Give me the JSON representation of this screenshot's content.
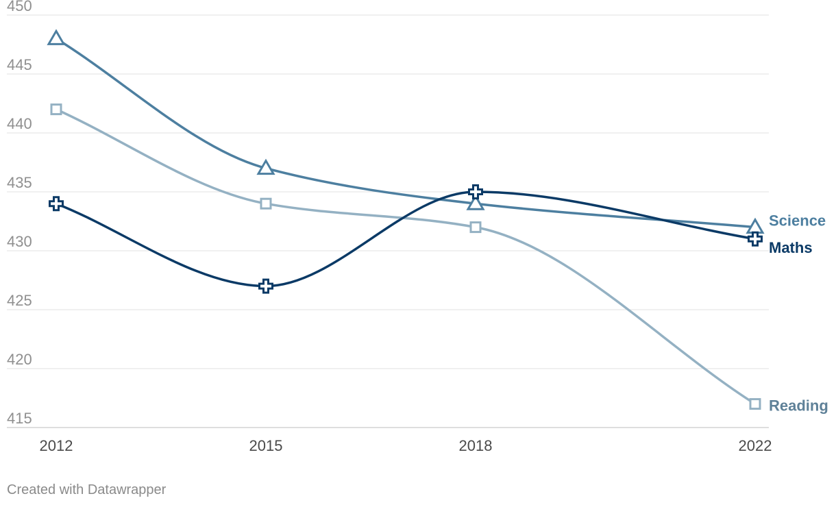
{
  "credit": "Created with Datawrapper",
  "chart_data": {
    "type": "line",
    "x": [
      "2012",
      "2015",
      "2018",
      "2022"
    ],
    "xvals": [
      2012,
      2015,
      2018,
      2022
    ],
    "ylim": [
      415,
      450
    ],
    "yticks": [
      415,
      420,
      425,
      430,
      435,
      440,
      445,
      450
    ],
    "grid": true,
    "series": [
      {
        "name": "Science",
        "values": [
          448,
          437,
          434,
          432
        ],
        "color": "#4d7fa0",
        "marker": "triangle"
      },
      {
        "name": "Maths",
        "values": [
          434,
          427,
          435,
          431
        ],
        "color": "#0b3a66",
        "marker": "plus"
      },
      {
        "name": "Reading",
        "values": [
          442,
          434,
          432,
          417
        ],
        "color": "#94b1c3",
        "marker": "square"
      }
    ],
    "label_colors": {
      "Science": "#4d7fa0",
      "Maths": "#0b3a66",
      "Reading": "#5f8198"
    }
  }
}
